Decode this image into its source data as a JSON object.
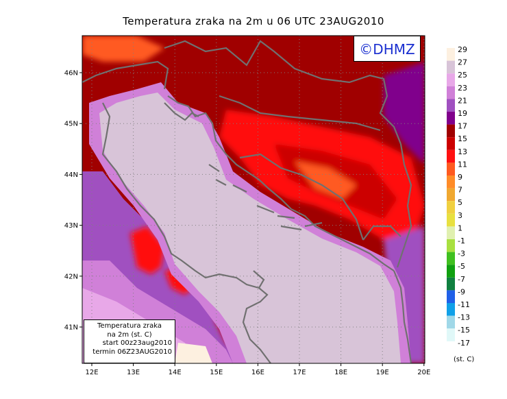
{
  "title": "Temperatura zraka na 2m u 06 UTC 23AUG2010",
  "logo_text": "©DHMZ",
  "info_box": {
    "line1": "Temperatura zraka",
    "line2": "na 2m (st. C)",
    "line3": "start 00z23aug2010",
    "line4": "termin 06Z23AUG2010"
  },
  "lat_labels": [
    "46N",
    "45N",
    "44N",
    "43N",
    "42N",
    "41N"
  ],
  "lon_labels": [
    "12E",
    "13E",
    "14E",
    "15E",
    "16E",
    "17E",
    "18E",
    "19E",
    "20E"
  ],
  "legend": {
    "unit": "(st. C)",
    "levels": [
      "29",
      "27",
      "25",
      "23",
      "21",
      "19",
      "17",
      "15",
      "13",
      "11",
      "9",
      "7",
      "5",
      "3",
      "1",
      "-1",
      "-3",
      "-5",
      "-7",
      "-9",
      "-11",
      "-13",
      "-15",
      "-17"
    ],
    "colors": [
      "#fdf0e0",
      "#d8c4d8",
      "#e8a8e8",
      "#d080d8",
      "#a050c0",
      "#80008c",
      "#a00000",
      "#cc0000",
      "#ff1010",
      "#ff5a20",
      "#ff8c28",
      "#f0a830",
      "#f0d040",
      "#e8e040",
      "#e0f0b0",
      "#a8e040",
      "#40c020",
      "#10a010",
      "#108040",
      "#2060e8",
      "#10a0e8",
      "#a0d8e8",
      "#e0f8f8"
    ],
    "colors_text": "fill bands between labelled levels"
  }
}
